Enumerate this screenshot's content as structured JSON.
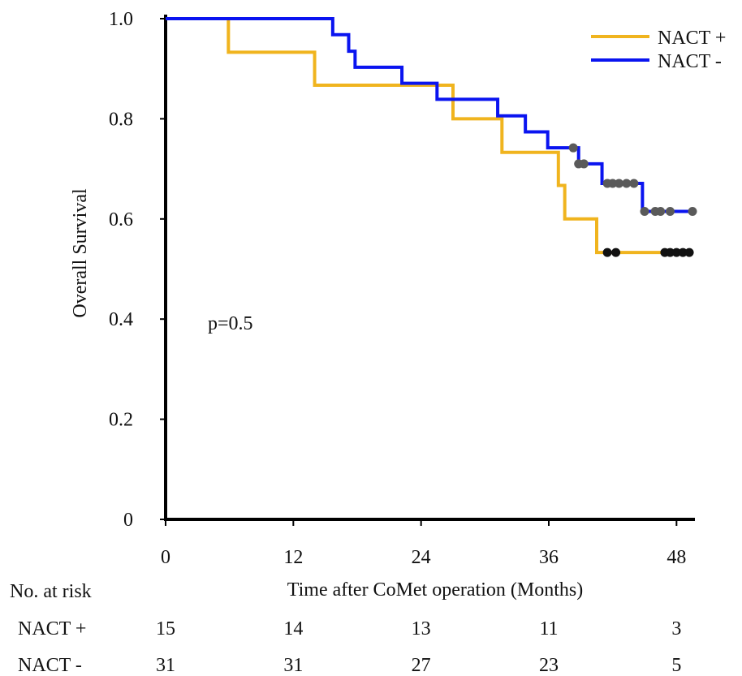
{
  "chart_data": {
    "type": "line",
    "title": "",
    "xlabel": "Time after CoMet operation (Months)",
    "ylabel": "Overall Survival",
    "xlim": [
      0,
      49.5
    ],
    "ylim": [
      0,
      1.0
    ],
    "x_ticks": [
      0,
      12,
      24,
      36,
      48
    ],
    "x_tick_labels": [
      "0",
      "12",
      "24",
      "36",
      "48"
    ],
    "y_ticks": [
      0,
      0.2,
      0.4,
      0.6,
      0.8,
      1.0
    ],
    "y_tick_labels": [
      "0",
      "0.2",
      "0.4",
      "0.6",
      "0.8",
      "1.0"
    ],
    "grid": false,
    "legend_position": "top-right",
    "annotation": "p=0.5",
    "series": [
      {
        "name": "NACT +",
        "color": "#f0b41e",
        "step_points": [
          [
            0,
            1.0
          ],
          [
            5.9,
            0.933
          ],
          [
            14.0,
            0.867
          ],
          [
            27.0,
            0.8
          ],
          [
            31.6,
            0.733
          ],
          [
            36.9,
            0.667
          ],
          [
            37.5,
            0.6
          ],
          [
            40.5,
            0.533
          ],
          [
            49.5,
            0.533
          ]
        ],
        "censor_color": "#111111",
        "censors": [
          [
            41.5,
            0.533
          ],
          [
            42.3,
            0.533
          ],
          [
            46.9,
            0.533
          ],
          [
            47.4,
            0.533
          ],
          [
            48.0,
            0.533
          ],
          [
            48.6,
            0.533
          ],
          [
            49.2,
            0.533
          ]
        ]
      },
      {
        "name": "NACT -",
        "color": "#0a14f0",
        "step_points": [
          [
            0,
            1.0
          ],
          [
            15.7,
            0.968
          ],
          [
            17.2,
            0.935
          ],
          [
            17.8,
            0.903
          ],
          [
            22.2,
            0.871
          ],
          [
            25.5,
            0.839
          ],
          [
            31.2,
            0.806
          ],
          [
            33.8,
            0.774
          ],
          [
            35.9,
            0.742
          ],
          [
            38.8,
            0.71
          ],
          [
            41.0,
            0.671
          ],
          [
            44.8,
            0.615
          ],
          [
            49.5,
            0.615
          ]
        ],
        "censor_color": "#5a5a5a",
        "censors": [
          [
            38.3,
            0.742
          ],
          [
            38.8,
            0.71
          ],
          [
            39.3,
            0.71
          ],
          [
            41.5,
            0.671
          ],
          [
            42.0,
            0.671
          ],
          [
            42.6,
            0.671
          ],
          [
            43.3,
            0.671
          ],
          [
            44.0,
            0.671
          ],
          [
            45.0,
            0.615
          ],
          [
            46.0,
            0.615
          ],
          [
            46.5,
            0.615
          ],
          [
            47.4,
            0.615
          ],
          [
            49.5,
            0.615
          ]
        ]
      }
    ]
  },
  "risk_table": {
    "heading": "No. at risk",
    "times": [
      0,
      12,
      24,
      36,
      48
    ],
    "rows": [
      {
        "label": "NACT +",
        "values": [
          "15",
          "14",
          "13",
          "11",
          "3"
        ]
      },
      {
        "label": "NACT -",
        "values": [
          "31",
          "31",
          "27",
          "23",
          "5"
        ]
      }
    ]
  }
}
